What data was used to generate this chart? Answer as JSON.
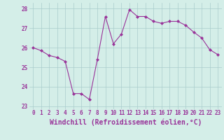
{
  "x": [
    0,
    1,
    2,
    3,
    4,
    5,
    6,
    7,
    8,
    9,
    10,
    11,
    12,
    13,
    14,
    15,
    16,
    17,
    18,
    19,
    20,
    21,
    22,
    23
  ],
  "y": [
    26.0,
    25.85,
    25.6,
    25.5,
    25.3,
    23.65,
    23.65,
    23.35,
    25.4,
    27.6,
    26.2,
    26.7,
    27.95,
    27.6,
    27.6,
    27.35,
    27.25,
    27.35,
    27.35,
    27.15,
    26.8,
    26.5,
    25.9,
    25.65
  ],
  "line_color": "#993399",
  "marker": "D",
  "marker_size": 2.0,
  "bg_color": "#d4eee8",
  "grid_color": "#aacccc",
  "xlabel": "Windchill (Refroidissement éolien,°C)",
  "xlabel_color": "#993399",
  "ylim": [
    22.85,
    28.3
  ],
  "xlim": [
    -0.5,
    23.5
  ],
  "yticks": [
    23,
    24,
    25,
    26,
    27,
    28
  ],
  "xticks": [
    0,
    1,
    2,
    3,
    4,
    5,
    6,
    7,
    8,
    9,
    10,
    11,
    12,
    13,
    14,
    15,
    16,
    17,
    18,
    19,
    20,
    21,
    22,
    23
  ],
  "tick_color": "#993399",
  "tick_fontsize": 5.5,
  "xlabel_fontsize": 7.0,
  "linewidth": 0.8
}
